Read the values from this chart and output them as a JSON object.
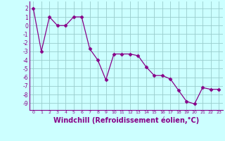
{
  "x": [
    0,
    1,
    2,
    3,
    4,
    5,
    6,
    7,
    8,
    9,
    10,
    11,
    12,
    13,
    14,
    15,
    16,
    17,
    18,
    19,
    20,
    21,
    22,
    23
  ],
  "y": [
    2,
    -3,
    1,
    0,
    0,
    1,
    1,
    -2.7,
    -4,
    -6.3,
    -3.3,
    -3.3,
    -3.3,
    -3.5,
    -4.8,
    -5.8,
    -5.8,
    -6.2,
    -7.5,
    -8.8,
    -9.1,
    -7.2,
    -7.4,
    -7.4
  ],
  "line_color": "#880088",
  "marker": "D",
  "marker_size": 2.5,
  "bg_color": "#ccffff",
  "grid_color": "#99cccc",
  "xlabel": "Windchill (Refroidissement éolien,°C)",
  "xlabel_fontsize": 7,
  "ylabel_ticks": [
    2,
    1,
    0,
    -1,
    -2,
    -3,
    -4,
    -5,
    -6,
    -7,
    -8,
    -9
  ],
  "xtick_labels": [
    "0",
    "1",
    "2",
    "3",
    "4",
    "5",
    "6",
    "7",
    "8",
    "9",
    "10",
    "11",
    "12",
    "13",
    "14",
    "15",
    "16",
    "17",
    "18",
    "19",
    "20",
    "21",
    "22",
    "23"
  ],
  "ylim": [
    -9.8,
    2.8
  ],
  "xlim": [
    -0.5,
    23.5
  ]
}
